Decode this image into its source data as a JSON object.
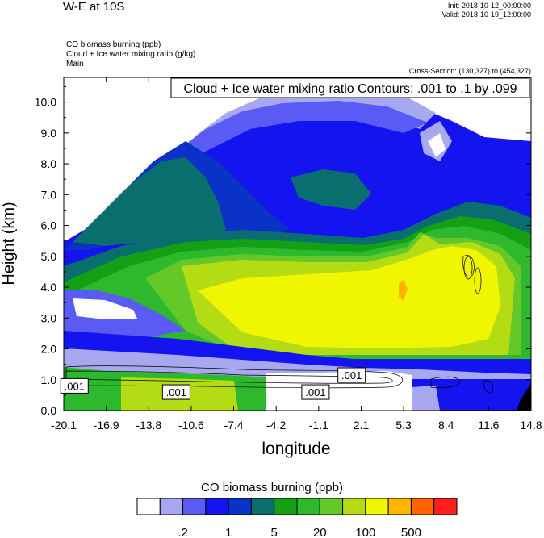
{
  "header": {
    "title": "W-E at 10S",
    "init": "Init: 2018-10-12_00:00:00",
    "valid": "Valid: 2018-10-19_12:00:00",
    "field1": "CO biomass burning   (ppb)",
    "field2": "Cloud + Ice water mixing ratio   (g/kg)",
    "field3": "Main",
    "cross_section": "Cross-Section: (130,327) to (454,327)"
  },
  "chart_data": {
    "type": "heatmap",
    "title": "Cloud + Ice water mixing ratio Contours: .001 to .1 by .099",
    "xlabel": "longitude",
    "ylabel": "Height (km)",
    "xlim": [
      -20.1,
      14.8
    ],
    "ylim": [
      0,
      10.8
    ],
    "x_ticks": [
      "-20.1",
      "-16.9",
      "-13.8",
      "-10.6",
      "-7.4",
      "-4.2",
      "-1.1",
      "2.1",
      "5.3",
      "8.4",
      "11.6",
      "14.8"
    ],
    "y_ticks": [
      "0.0",
      "1.0",
      "2.0",
      "3.0",
      "4.0",
      "5.0",
      "6.0",
      "7.0",
      "8.0",
      "9.0",
      "10.0"
    ],
    "contour_labels": [
      {
        "text": ".001",
        "x": -19.3,
        "y": 0.8
      },
      {
        "text": ".001",
        "x": -11.7,
        "y": 0.6
      },
      {
        "text": ".001",
        "x": -1.3,
        "y": 0.6
      },
      {
        "text": ".001",
        "x": 1.4,
        "y": 1.15
      }
    ],
    "colorbar": {
      "title": "CO biomass burning  (ppb)",
      "colors": [
        "#ffffff",
        "#a8a8f0",
        "#5a5af5",
        "#1414f0",
        "#0a32c8",
        "#0a6e6e",
        "#14a014",
        "#2db82d",
        "#64c828",
        "#b4dc14",
        "#f0f500",
        "#ffb400",
        "#ff6400",
        "#ff1e1e"
      ],
      "labels": [
        ".2",
        "1",
        "5",
        "20",
        "100",
        "500"
      ]
    },
    "grid": false
  }
}
